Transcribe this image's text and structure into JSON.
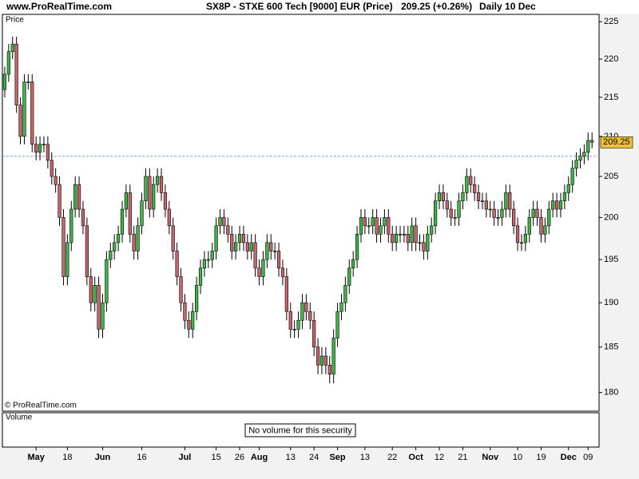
{
  "header": {
    "site": "www.ProRealTime.com",
    "quote": "209.25 (+0.26%)",
    "period": "Daily  10 Dec"
  },
  "chart_data": {
    "type": "candlestick",
    "title": "SX8P - STXE 600 Tech [9000] EUR (Price)",
    "panel_label": "Price",
    "copyright": "© ProRealTime.com",
    "volume_label": "Volume",
    "volume_note": "No volume for this security",
    "up_color": "#3fb548",
    "down_color": "#c8646c",
    "log_scale": true,
    "reference_line": 207.5,
    "reference_color": "#7aa6e0",
    "last_value": 209.25,
    "last_color": "#f2c12e",
    "ylim": [
      178,
      226
    ],
    "yticks": [
      180,
      185,
      190,
      195,
      200,
      205,
      210,
      215,
      220,
      225
    ],
    "xlim": [
      -0.6,
      151.8
    ],
    "xticks": [
      {
        "value": 8,
        "label": "May"
      },
      {
        "value": 16,
        "label": "18"
      },
      {
        "value": 25,
        "label": "Jun"
      },
      {
        "value": 35,
        "label": "16"
      },
      {
        "value": 46,
        "label": "Jul"
      },
      {
        "value": 54,
        "label": "15"
      },
      {
        "value": 60,
        "label": "26"
      },
      {
        "value": 65,
        "label": "Aug"
      },
      {
        "value": 73,
        "label": "13"
      },
      {
        "value": 79,
        "label": "24"
      },
      {
        "value": 85,
        "label": "Sep"
      },
      {
        "value": 92,
        "label": "13"
      },
      {
        "value": 99,
        "label": "22"
      },
      {
        "value": 105,
        "label": "Oct"
      },
      {
        "value": 111,
        "label": "12"
      },
      {
        "value": 117,
        "label": "21"
      },
      {
        "value": 124,
        "label": "Nov"
      },
      {
        "value": 131,
        "label": "10"
      },
      {
        "value": 137,
        "label": "19"
      },
      {
        "value": 144,
        "label": "Dec"
      },
      {
        "value": 149,
        "label": "09"
      }
    ],
    "open": [
      216,
      218,
      221,
      222,
      214,
      210,
      217,
      217,
      209,
      208,
      209,
      209,
      207,
      205,
      204,
      200,
      193,
      197,
      201,
      204,
      201,
      199,
      193,
      190,
      192,
      187,
      190,
      195,
      196,
      197,
      198,
      201,
      203,
      198,
      196,
      199,
      202,
      205,
      201,
      204,
      205,
      203,
      201,
      199,
      196,
      193,
      190,
      188,
      187,
      189,
      192,
      194,
      195,
      195,
      196,
      199,
      200,
      199,
      198,
      196,
      197,
      198,
      197,
      196,
      197,
      194,
      193,
      195,
      197,
      196,
      196,
      194,
      193,
      189,
      187,
      187,
      188,
      190,
      189,
      188,
      185,
      183,
      184,
      183,
      182,
      186,
      189,
      190,
      192,
      194,
      195,
      198,
      200,
      199,
      199,
      200,
      198,
      199,
      200,
      198,
      197,
      198,
      198,
      198,
      197,
      199,
      197,
      197,
      196,
      198,
      199,
      202,
      203,
      202,
      201,
      200,
      200,
      202,
      203,
      205,
      204,
      203,
      202,
      202,
      201,
      201,
      200,
      200,
      201,
      203,
      201,
      199,
      197,
      197,
      198,
      200,
      201,
      200,
      198,
      199,
      201,
      202,
      201,
      202,
      203,
      204,
      206,
      207,
      207.5,
      208,
      209.5
    ],
    "high": [
      219,
      222,
      223,
      223,
      215,
      218,
      218,
      218,
      210,
      210,
      210,
      210,
      208,
      206,
      205,
      201,
      198,
      202,
      205,
      205,
      202,
      200,
      194,
      193,
      193,
      191,
      196,
      197,
      198,
      199,
      202,
      204,
      204,
      199,
      200,
      203,
      206,
      206,
      205,
      206,
      206,
      204,
      202,
      200,
      197,
      194,
      191,
      189,
      190,
      193,
      195,
      196,
      196,
      197,
      200,
      201,
      201,
      200,
      199,
      198,
      199,
      199,
      198,
      198,
      198,
      195,
      196,
      198,
      198,
      197,
      197,
      195,
      194,
      190,
      188,
      189,
      191,
      191,
      190,
      189,
      186,
      185,
      185,
      184,
      187,
      190,
      191,
      193,
      195,
      196,
      199,
      201,
      201,
      200,
      201,
      201,
      200,
      201,
      201,
      199,
      199,
      199,
      199,
      199,
      200,
      200,
      198,
      198,
      199,
      200,
      203,
      204,
      204,
      203,
      202,
      201,
      203,
      204,
      206,
      206,
      205,
      204,
      203,
      203,
      202,
      202,
      201,
      202,
      204,
      204,
      202,
      200,
      198,
      199,
      201,
      202,
      202,
      201,
      200,
      202,
      203,
      203,
      203,
      204,
      205,
      207,
      208,
      208.5,
      209,
      210.5,
      210.5
    ],
    "low": [
      215,
      217,
      220,
      213,
      209,
      209,
      216,
      208,
      207,
      207,
      208,
      206,
      204,
      203,
      199,
      192,
      192,
      196,
      200,
      200,
      198,
      192,
      189,
      189,
      186,
      186,
      189,
      194,
      195,
      196,
      197,
      200,
      197,
      195,
      195,
      198,
      201,
      200,
      200,
      203,
      202,
      200,
      198,
      195,
      192,
      189,
      187,
      186,
      186,
      188,
      191,
      193,
      194,
      194,
      195,
      198,
      198,
      197,
      195,
      195,
      196,
      196,
      195,
      195,
      193,
      192,
      192,
      194,
      195,
      195,
      193,
      192,
      188,
      186,
      186,
      186,
      187,
      188,
      187,
      184,
      182,
      182,
      182,
      181,
      181,
      185,
      188,
      189,
      191,
      193,
      194,
      197,
      198,
      198,
      198,
      197,
      197,
      198,
      197,
      196,
      196,
      197,
      197,
      196,
      196,
      196,
      196,
      195,
      195,
      197,
      198,
      201,
      201,
      200,
      199,
      199,
      199,
      201,
      202,
      203,
      202,
      201,
      201,
      200,
      200,
      199,
      199,
      199,
      200,
      200,
      198,
      196,
      196,
      196,
      197,
      199,
      199,
      197,
      197,
      198,
      200,
      200,
      200,
      201,
      202,
      203,
      205,
      206,
      206.5,
      207,
      208.5
    ],
    "close": [
      218,
      221,
      222,
      214,
      210,
      217,
      217,
      209,
      208,
      209,
      209,
      207,
      205,
      204,
      200,
      193,
      197,
      201,
      204,
      201,
      199,
      193,
      190,
      192,
      187,
      190,
      195,
      196,
      197,
      198,
      201,
      203,
      198,
      196,
      199,
      202,
      205,
      201,
      204,
      205,
      203,
      201,
      199,
      196,
      193,
      190,
      188,
      187,
      189,
      192,
      194,
      195,
      195,
      196,
      199,
      200,
      199,
      198,
      196,
      197,
      198,
      197,
      196,
      197,
      194,
      193,
      195,
      197,
      196,
      196,
      194,
      193,
      189,
      187,
      187,
      188,
      190,
      189,
      188,
      185,
      183,
      184,
      183,
      182,
      186,
      189,
      190,
      192,
      194,
      195,
      198,
      200,
      199,
      199,
      200,
      198,
      199,
      200,
      198,
      197,
      198,
      198,
      198,
      197,
      199,
      197,
      197,
      196,
      198,
      199,
      202,
      203,
      202,
      201,
      200,
      200,
      202,
      203,
      205,
      204,
      203,
      202,
      202,
      201,
      201,
      200,
      200,
      201,
      203,
      201,
      199,
      197,
      197,
      198,
      200,
      201,
      200,
      198,
      199,
      201,
      202,
      201,
      202,
      203,
      204,
      206,
      207,
      207.5,
      208,
      209.5,
      209.25
    ]
  }
}
